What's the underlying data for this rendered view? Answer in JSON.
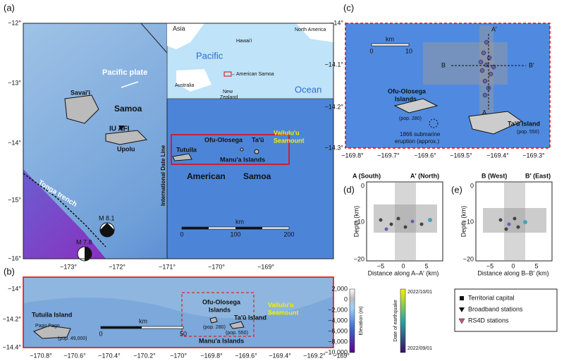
{
  "panels": {
    "a": {
      "label": "(a)",
      "yticks": [
        "−12°",
        "−13°",
        "−14°",
        "−15°",
        "−16°"
      ],
      "xticks": [
        "−173°",
        "−172°",
        "−171°",
        "−170°",
        "−169°"
      ],
      "inset": [
        "Asia",
        "Pacific",
        "Hawai'i",
        "North America",
        "←American Samoa",
        "Australia",
        "New",
        "Zealand",
        "Ocean"
      ],
      "labels": [
        "Pacific plate",
        "Samoa",
        "Savai'i",
        "IU AFI",
        "Upolu",
        "International Date Line",
        "Tonga trench",
        "M 8.1",
        "M 7.8",
        "Tutuila",
        "Ofu-Olosega",
        "Ta'ū",
        "Manu'a Islands",
        "Vailulu'u",
        "Seamount",
        "American",
        "Samoa"
      ],
      "scale": [
        "km",
        "0",
        "100",
        "200"
      ]
    },
    "b": {
      "label": "(b)",
      "yticks": [
        "−14°",
        "−14.2°",
        "−14.4°"
      ],
      "xticks": [
        "−170.8°",
        "−170.6°",
        "−170.4°",
        "−170.2°",
        "−170°",
        "−169.8°",
        "−169.6°",
        "−169.4°",
        "−169.2°",
        "−169°"
      ],
      "labels": [
        "Tutuila Island",
        "Pago Pago",
        "(pop. 49,000)",
        "Ofu-Olosega",
        "Islands",
        "(pop. 280)",
        "Ta'ū Island",
        "(pop. 550)",
        "Manu'a Islands",
        "Vailulu'u",
        "Seamount"
      ],
      "scale": [
        "km",
        "0",
        "50"
      ]
    },
    "c": {
      "label": "(c)",
      "yticks": [
        "−14°",
        "−14.1°",
        "−14.2°",
        "−14.3°"
      ],
      "xticks": [
        "−169.8°",
        "−169.7°",
        "−169.6°",
        "−169.5°",
        "−169.4°",
        "−169.3°"
      ],
      "labels": [
        "A′",
        "B",
        "B′",
        "A",
        "Ofu-Olosega",
        "Islands",
        "(pop. 280)",
        "1866 submarine",
        "eruption (approx.)",
        "Ta'ū Island",
        "(pop. 550)"
      ],
      "scale": [
        "km",
        "0",
        "10"
      ]
    },
    "d": {
      "label": "(d)",
      "left": "A (South)",
      "right": "A′ (North)",
      "ylabel": "Depth (km)",
      "yticks": [
        "0",
        "−10",
        "−20"
      ],
      "xticks": [
        "−5",
        "0",
        "5"
      ],
      "xlabel": "Distance along A–A′ (km)"
    },
    "e": {
      "label": "(e)",
      "left": "B (West)",
      "right": "B′ (East)",
      "ylabel": "Depth (km)",
      "yticks": [
        "0",
        "−10",
        "−20"
      ],
      "xticks": [
        "−5",
        "0",
        "5"
      ],
      "xlabel": "Distance along B–B′ (km)"
    }
  },
  "colorbars": {
    "elevation": {
      "label": "Elevation (m)",
      "ticks": [
        "2,000",
        "0",
        "−2,000",
        "−4,000",
        "−6,000",
        "−8,000",
        "−10,000"
      ]
    },
    "date": {
      "label": "Date of earthquake",
      "ticks": [
        "2022/10/01",
        "2022/09/01"
      ]
    }
  },
  "legend": [
    "Territorial capital",
    "Broadband stations",
    "RS4D stations"
  ]
}
